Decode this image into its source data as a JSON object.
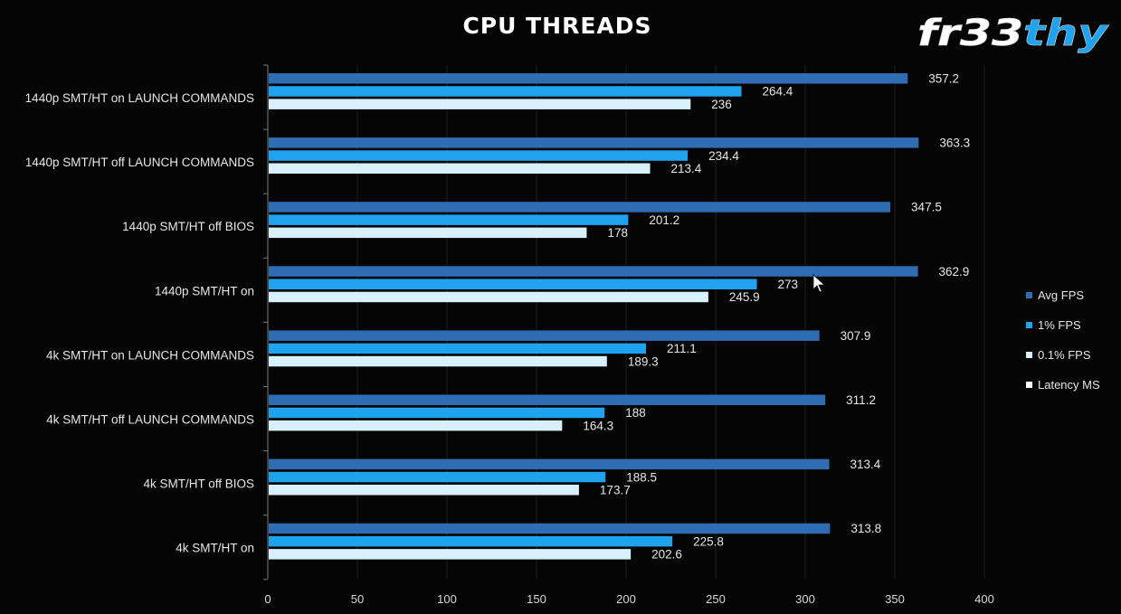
{
  "chart_data": {
    "type": "bar",
    "orientation": "horizontal",
    "title": "CPU THREADS",
    "categories": [
      "1440p SMT/HT on LAUNCH COMMANDS",
      "1440p SMT/HT off LAUNCH COMMANDS",
      "1440p SMT/HT off BIOS",
      "1440p SMT/HT on",
      "4k SMT/HT on LAUNCH COMMANDS",
      "4k SMT/HT off LAUNCH COMMANDS",
      "4k SMT/HT off BIOS",
      "4k SMT/HT on"
    ],
    "series": [
      {
        "name": "Avg FPS",
        "color": "#2e6db4",
        "values": [
          357.2,
          363.3,
          347.5,
          362.9,
          307.9,
          311.2,
          313.4,
          313.8
        ]
      },
      {
        "name": "1% FPS",
        "color": "#1fa3ee",
        "values": [
          264.4,
          234.4,
          201.2,
          273,
          211.1,
          188,
          188.5,
          225.8
        ]
      },
      {
        "name": "0.1% FPS",
        "color": "#d8f0fb",
        "values": [
          236,
          213.4,
          178,
          245.9,
          189.3,
          164.3,
          173.7,
          202.6
        ]
      },
      {
        "name": "Latency MS",
        "color": "#ffffff",
        "values": [
          null,
          null,
          null,
          null,
          null,
          null,
          null,
          null
        ]
      }
    ],
    "xlim": [
      0,
      400
    ],
    "xticks": [
      0,
      50,
      100,
      150,
      200,
      250,
      300,
      350,
      400
    ],
    "grid": true,
    "legend_position": "right"
  },
  "logo": {
    "text": "fr33thy"
  }
}
